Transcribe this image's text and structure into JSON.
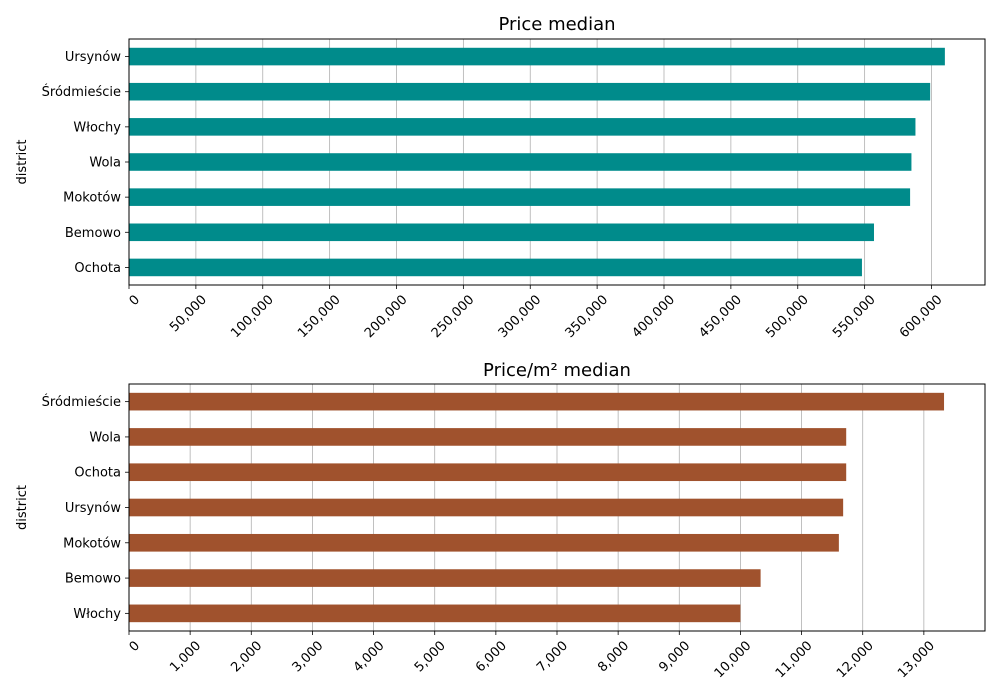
{
  "chart_data": [
    {
      "type": "bar",
      "orientation": "horizontal",
      "title": "Price median",
      "xlabel": "",
      "ylabel": "district",
      "categories": [
        "Ursynów",
        "Śródmieście",
        "Włochy",
        "Wola",
        "Mokotów",
        "Bemowo",
        "Ochota"
      ],
      "values": [
        610000,
        599000,
        588000,
        585000,
        584000,
        557000,
        548000
      ],
      "color": "#008b8b",
      "xlim": [
        0,
        640000
      ],
      "xticks": [
        0,
        50000,
        100000,
        150000,
        200000,
        250000,
        300000,
        350000,
        400000,
        450000,
        500000,
        550000,
        600000
      ],
      "xtick_labels": [
        "0",
        "50,000",
        "100,000",
        "150,000",
        "200,000",
        "250,000",
        "300,000",
        "350,000",
        "400,000",
        "450,000",
        "500,000",
        "550,000",
        "600,000"
      ],
      "grid": "x"
    },
    {
      "type": "bar",
      "orientation": "horizontal",
      "title": "Price/m² median",
      "xlabel": "",
      "ylabel": "district",
      "categories": [
        "Śródmieście",
        "Wola",
        "Ochota",
        "Ursynów",
        "Mokotów",
        "Bemowo",
        "Włochy"
      ],
      "values": [
        13330,
        11730,
        11730,
        11680,
        11610,
        10330,
        10000
      ],
      "color": "#a0522d",
      "xlim": [
        0,
        14000
      ],
      "xticks": [
        0,
        1000,
        2000,
        3000,
        4000,
        5000,
        6000,
        7000,
        8000,
        9000,
        10000,
        11000,
        12000,
        13000
      ],
      "xtick_labels": [
        "0",
        "1,000",
        "2,000",
        "3,000",
        "4,000",
        "5,000",
        "6,000",
        "7,000",
        "8,000",
        "9,000",
        "10,000",
        "11,000",
        "12,000",
        "13,000"
      ],
      "grid": "x"
    }
  ]
}
